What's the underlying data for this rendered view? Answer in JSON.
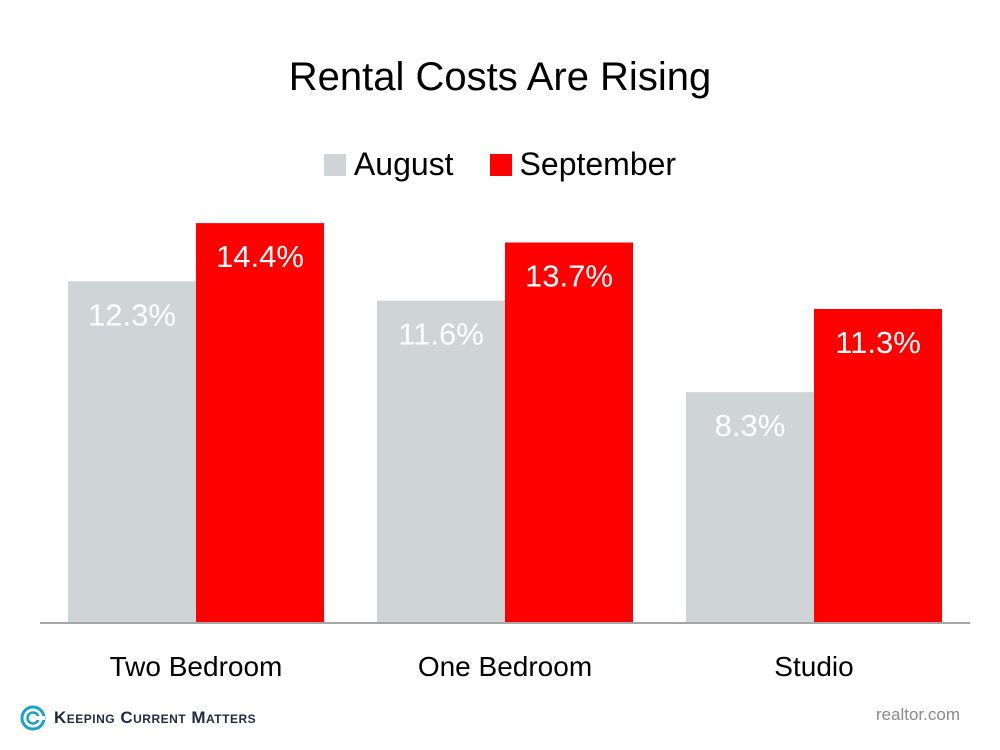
{
  "chart_data": {
    "type": "bar",
    "title": "Rental Costs Are Rising",
    "categories": [
      "Two Bedroom",
      "One Bedroom",
      "Studio"
    ],
    "series": [
      {
        "name": "August",
        "values": [
          12.3,
          11.6,
          8.3
        ],
        "labels": [
          "12.3%",
          "11.6%",
          "8.3%"
        ],
        "color": "#cfd5d7"
      },
      {
        "name": "September",
        "values": [
          14.4,
          13.7,
          11.3
        ],
        "labels": [
          "14.4%",
          "13.7%",
          "11.3%"
        ],
        "color": "#ff0000"
      }
    ],
    "ylim": [
      0,
      16
    ],
    "grid": false,
    "legend_position": "top-center"
  },
  "footer": {
    "brand": "Keeping Current Matters",
    "source": "realtor.com"
  }
}
